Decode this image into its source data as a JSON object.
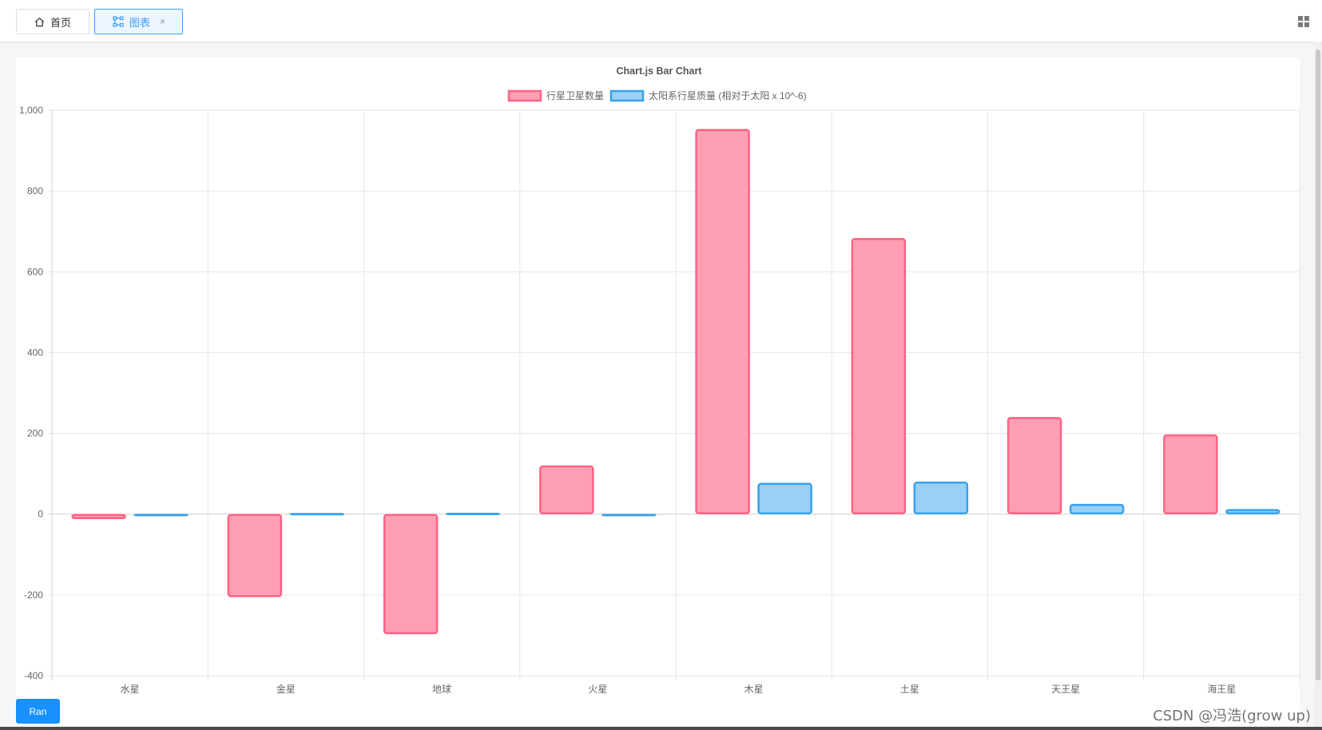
{
  "tabs": [
    {
      "label": "首页",
      "icon": "home-icon",
      "active": false
    },
    {
      "label": "图表",
      "icon": "chart-icon",
      "active": true,
      "close": "×"
    }
  ],
  "toolbar": {
    "grid_icon": "grid-menu-icon"
  },
  "button": {
    "label": "Ran"
  },
  "watermark": "CSDN @冯浩(grow up)",
  "colors": {
    "accent": "#409eff",
    "series1_fill": "#ff9fb3",
    "series1_border": "#ff6384",
    "series2_fill": "#9ad0f5",
    "series2_border": "#36a2eb"
  },
  "chart_data": {
    "type": "bar",
    "title": "Chart.js Bar Chart",
    "categories": [
      "水星",
      "金星",
      "地球",
      "火星",
      "木星",
      "土星",
      "天王星",
      "海王星"
    ],
    "series": [
      {
        "name": "行星卫星数量",
        "values": [
          -12,
          -205,
          -297,
          120,
          953,
          683,
          240,
          197
        ]
      },
      {
        "name": "太阳系行星质量 (相对于太阳 x 10^-6)",
        "values": [
          0.2,
          2.4,
          3,
          0.3,
          77,
          80,
          25,
          12
        ]
      }
    ],
    "ylim": [
      -400,
      1000
    ],
    "yticks": [
      1000,
      800,
      600,
      400,
      200,
      0,
      -200,
      -400
    ],
    "ytick_labels": [
      "1,000",
      "800",
      "600",
      "400",
      "200",
      "0",
      "-200",
      "-400"
    ],
    "legend_position": "top",
    "grid": true
  }
}
